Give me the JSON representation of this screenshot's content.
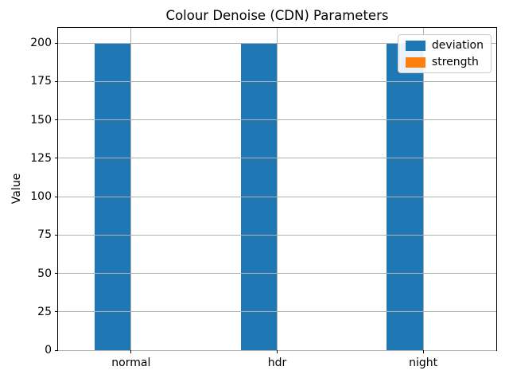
{
  "chart_data": {
    "type": "bar",
    "title": "Colour Denoise (CDN) Parameters",
    "xlabel": "",
    "ylabel": "Value",
    "categories": [
      "normal",
      "hdr",
      "night"
    ],
    "series": [
      {
        "name": "deviation",
        "color": "#1f77b4",
        "values": [
          200,
          200,
          200
        ]
      },
      {
        "name": "strength",
        "color": "#ff7f0e",
        "values": [
          0,
          0,
          0
        ]
      }
    ],
    "yticks": [
      0,
      25,
      50,
      75,
      100,
      125,
      150,
      175,
      200
    ],
    "ylim": [
      0,
      210
    ],
    "bar_width": 0.25,
    "grid": true,
    "grid_color": "#b0b0b0",
    "legend_position": "upper right"
  }
}
